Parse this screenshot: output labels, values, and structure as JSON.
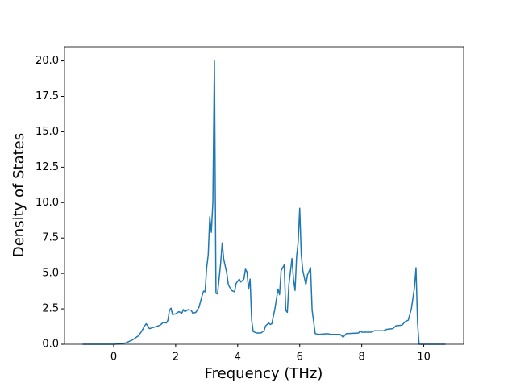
{
  "chart_data": {
    "type": "line",
    "xlabel": "Frequency (THz)",
    "ylabel": "Density of States",
    "color": "#1f77b4",
    "x": [
      -1.0,
      0,
      0.2,
      0.4,
      0.6,
      0.8,
      0.9,
      1.0,
      1.05,
      1.1,
      1.15,
      1.3,
      1.5,
      1.6,
      1.7,
      1.75,
      1.8,
      1.85,
      1.9,
      2.0,
      2.1,
      2.2,
      2.25,
      2.3,
      2.4,
      2.5,
      2.55,
      2.65,
      2.75,
      2.85,
      2.9,
      2.95,
      3.0,
      3.05,
      3.1,
      3.15,
      3.2,
      3.25,
      3.3,
      3.35,
      3.45,
      3.5,
      3.55,
      3.65,
      3.7,
      3.8,
      3.9,
      3.95,
      4.05,
      4.1,
      4.2,
      4.25,
      4.3,
      4.35,
      4.4,
      4.45,
      4.5,
      4.6,
      4.75,
      4.85,
      4.9,
      5.0,
      5.05,
      5.1,
      5.2,
      5.3,
      5.35,
      5.4,
      5.5,
      5.55,
      5.6,
      5.65,
      5.75,
      5.8,
      5.85,
      5.9,
      5.95,
      6.0,
      6.05,
      6.1,
      6.2,
      6.25,
      6.35,
      6.4,
      6.5,
      6.6,
      6.9,
      7.0,
      7.3,
      7.4,
      7.5,
      7.9,
      7.95,
      8.0,
      8.3,
      8.4,
      8.7,
      8.8,
      9.0,
      9.1,
      9.3,
      9.4,
      9.5,
      9.6,
      9.7,
      9.75,
      9.8,
      9.85,
      10.7
    ],
    "values": [
      0,
      0,
      0.02,
      0.1,
      0.3,
      0.6,
      0.9,
      1.3,
      1.45,
      1.3,
      1.1,
      1.2,
      1.35,
      1.55,
      1.5,
      1.7,
      2.4,
      2.55,
      2.1,
      2.15,
      2.3,
      2.2,
      2.45,
      2.3,
      2.45,
      2.4,
      2.2,
      2.25,
      2.6,
      3.4,
      3.75,
      3.7,
      5.4,
      6.3,
      9.0,
      7.9,
      10.0,
      20.0,
      3.6,
      3.55,
      5.7,
      7.15,
      6.0,
      5.0,
      4.2,
      3.8,
      3.7,
      4.3,
      4.6,
      4.4,
      4.6,
      5.3,
      5.1,
      3.9,
      4.6,
      1.7,
      0.9,
      0.8,
      0.8,
      0.95,
      1.3,
      1.5,
      1.4,
      1.45,
      2.5,
      3.9,
      3.5,
      5.2,
      5.6,
      2.4,
      2.25,
      4.2,
      6.05,
      4.6,
      3.8,
      6.2,
      7.2,
      9.6,
      6.3,
      5.2,
      4.2,
      4.9,
      5.4,
      2.4,
      0.75,
      0.7,
      0.75,
      0.7,
      0.7,
      0.5,
      0.75,
      0.8,
      0.95,
      0.85,
      0.85,
      0.95,
      0.95,
      1.05,
      1.1,
      1.3,
      1.35,
      1.6,
      1.7,
      2.5,
      4.0,
      5.4,
      1.5,
      0,
      0
    ],
    "xlim": [
      -1.585,
      11.285
    ],
    "xticks": [
      0,
      2,
      4,
      6,
      8,
      10
    ],
    "ylim": [
      0,
      21
    ],
    "yticks": [
      {
        "value": 0,
        "label": "0.0"
      },
      2.5,
      {
        "value": 5,
        "label": "5.0"
      },
      7.5,
      {
        "value": 10,
        "label": "10.0"
      },
      12.5,
      {
        "value": 15,
        "label": "15.0"
      },
      17.5,
      {
        "value": 20,
        "label": "20.0"
      }
    ]
  }
}
